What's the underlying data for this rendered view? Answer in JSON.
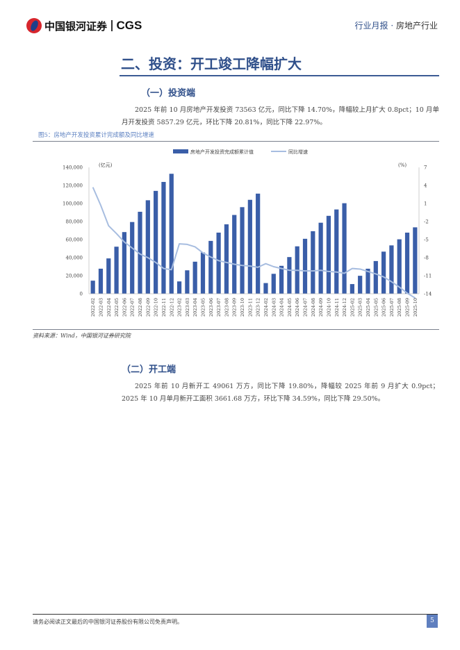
{
  "header": {
    "brand_cn": "中国银河证券",
    "brand_en": "CGS",
    "report_type": "行业月报",
    "separator": "·",
    "industry": "房地产行业"
  },
  "section_title": "二、投资：开工竣工降幅扩大",
  "sub1": {
    "title": "（一）投资端",
    "paragraph": "2025 年前 10 月房地产开发投资 73563 亿元，同比下降 14.70%，降幅较上月扩大 0.8pct；10 月单月开发投资 5857.29 亿元，环比下降 20.81%，同比下降 22.97%。"
  },
  "figure": {
    "caption": "图5：房地产开发投资累计完成额及同比增速",
    "source": "资料来源：Wind，中国银河证券研究院"
  },
  "sub2": {
    "title": "（二）开工端",
    "paragraph": "2025 年前 10 月新开工 49061 万方，同比下降 19.80%，降幅较 2025 年前 9 月扩大 0.9pct；2025 年 10 月单月新开工面积 3661.68 万方，环比下降 34.59%，同比下降 29.50%。"
  },
  "footer": {
    "disclaimer": "请务必阅读正文最后的中国银河证券股份有限公司免责声明。",
    "page_number": "5"
  },
  "colors": {
    "bar": "#3a5ea8",
    "line": "#a7bde0",
    "accent": "#2f4f8a"
  },
  "chart_data": {
    "type": "bar+line",
    "title": "房地产开发投资累计完成额及同比增速",
    "left_unit": "(亿元)",
    "right_unit": "(%)",
    "left_ylim": [
      0,
      140000
    ],
    "left_ticks": [
      "0",
      "20,000",
      "40,000",
      "60,000",
      "80,000",
      "100,000",
      "120,000",
      "140,000"
    ],
    "right_ylim": [
      -14,
      7
    ],
    "right_ticks": [
      "-14",
      "-11",
      "-8",
      "-5",
      "-2",
      "1",
      "4",
      "7"
    ],
    "legend_position": "top-center",
    "categories": [
      "2022-02",
      "2022-03",
      "2022-04",
      "2022-05",
      "2022-06",
      "2022-07",
      "2022-08",
      "2022-09",
      "2022-10",
      "2022-11",
      "2022-12",
      "2023-02",
      "2023-03",
      "2023-04",
      "2023-05",
      "2023-06",
      "2023-07",
      "2023-08",
      "2023-09",
      "2023-10",
      "2023-11",
      "2023-12",
      "2024-02",
      "2024-03",
      "2024-04",
      "2024-05",
      "2024-06",
      "2024-07",
      "2024-08",
      "2024-09",
      "2024-10",
      "2024-11",
      "2024-12",
      "2025-02",
      "2025-03",
      "2025-04",
      "2025-05",
      "2025-06",
      "2025-07",
      "2025-08",
      "2025-09",
      "2025-10"
    ],
    "series": [
      {
        "name": "房地产开发投资完成额累计值",
        "type": "bar",
        "axis": "left",
        "values": [
          14499,
          27765,
          39154,
          52134,
          68314,
          79462,
          90809,
          103559,
          113945,
          123863,
          132895,
          13669,
          25967,
          35514,
          45701,
          58550,
          67717,
          76900,
          87269,
          95922,
          104045,
          110913,
          11842,
          22082,
          30928,
          40632,
          52529,
          60877,
          69284,
          78680,
          86309,
          93368,
          100280,
          10720,
          19904,
          27730,
          36234,
          46658,
          53580,
          60309,
          67706,
          73563
        ]
      },
      {
        "name": "同比增速",
        "type": "line",
        "axis": "right",
        "values": [
          3.7,
          0.7,
          -2.7,
          -4.0,
          -5.4,
          -6.4,
          -7.4,
          -8.0,
          -8.8,
          -9.8,
          -10.0,
          -5.7,
          -5.8,
          -6.2,
          -7.2,
          -7.9,
          -8.5,
          -8.8,
          -9.1,
          -9.3,
          -9.4,
          -9.6,
          -9.0,
          -9.5,
          -9.8,
          -10.1,
          -10.1,
          -10.2,
          -10.2,
          -10.1,
          -10.3,
          -10.4,
          -10.6,
          -9.8,
          -9.9,
          -10.3,
          -10.7,
          -11.2,
          -12.0,
          -12.9,
          -13.9,
          -14.7
        ]
      }
    ]
  }
}
